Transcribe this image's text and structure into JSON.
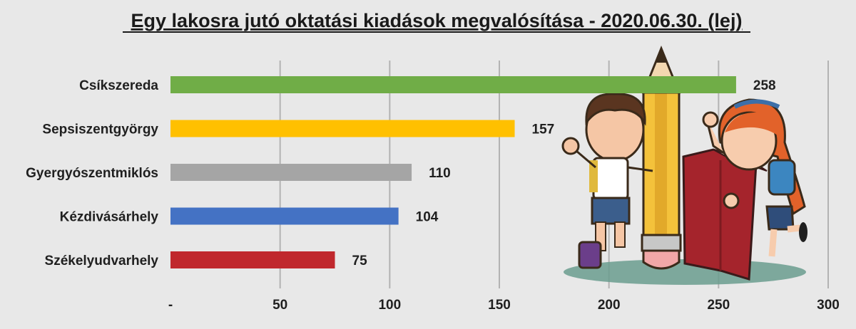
{
  "chart_data": {
    "type": "bar",
    "orientation": "horizontal",
    "title": "Egy lakosra jutó oktatási kiadások megvalósítása - 2020.06.30. (lej)",
    "categories": [
      "Csíkszereda",
      "Sepsiszentgyörgy",
      "Gyergyószentmiklós",
      "Kézdivásárhely",
      "Székelyudvarhely"
    ],
    "values": [
      258,
      157,
      110,
      104,
      75
    ],
    "colors": [
      "#70ad47",
      "#ffc000",
      "#a5a5a5",
      "#4472c4",
      "#c0282d"
    ],
    "xlim": [
      0,
      300
    ],
    "xticks": [
      0,
      50,
      100,
      150,
      200,
      250,
      300
    ],
    "xtick_labels": [
      "-",
      "50",
      "100",
      "150",
      "200",
      "250",
      "300"
    ],
    "grid": true,
    "legend": "none"
  },
  "illustration": {
    "description_icon": "children-with-pencil-and-book-illustration"
  }
}
